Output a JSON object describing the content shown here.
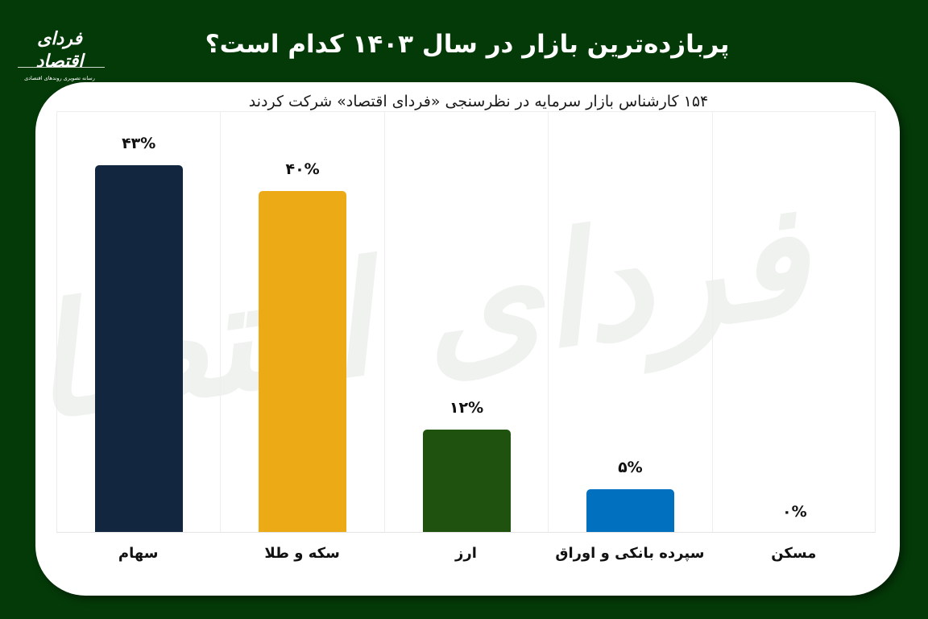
{
  "logo": {
    "name": "فردای اقتصاد",
    "tagline": "رسانه تصویری روندهای اقتصادی"
  },
  "header": {
    "title": "پربازده‌ترین بازار در سال ۱۴۰۳ کدام است؟"
  },
  "watermark": {
    "text": "فردای اقتصاد"
  },
  "chart_data": {
    "type": "bar",
    "title": "پربازده‌ترین بازار در سال ۱۴۰۳ کدام است؟",
    "subtitle": "۱۵۴ کارشناس بازار سرمایه در نظرسنجی «فردای اقتصاد» شرکت کردند",
    "categories": [
      "سهام",
      "سکه و طلا",
      "ارز",
      "سپرده بانکی و اوراق",
      "مسکن"
    ],
    "values": [
      43,
      40,
      12,
      5,
      0
    ],
    "value_labels": [
      "۴۳%",
      "۴۰%",
      "۱۲%",
      "۵%",
      "۰%"
    ],
    "colors": [
      "#13263f",
      "#edaa17",
      "#1f520f",
      "#0070bf",
      "#cccccc"
    ],
    "xlabel": "",
    "ylabel": "",
    "ylim": [
      0,
      49
    ],
    "grid": "vertical separators between categories",
    "legend": "none",
    "unit": "%"
  }
}
